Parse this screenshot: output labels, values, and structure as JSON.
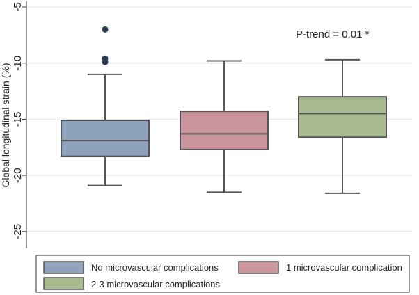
{
  "chart_data": {
    "type": "box",
    "ylabel": "Global longitudinal strain (%)",
    "ylim": [
      -26.5,
      -4.5
    ],
    "yticks": [
      -5,
      -10,
      -15,
      -20,
      -25
    ],
    "ytick_labels": [
      "-5",
      "-10",
      "-15",
      "-20",
      "-25"
    ],
    "grid": true,
    "annotation": "P-trend = 0.01 *",
    "legend_position": "bottom",
    "series": [
      {
        "name": "No microvascular complications",
        "color": "#8ea2bc",
        "whisker_high": -11.0,
        "q3": -15.1,
        "median": -16.9,
        "q1": -18.3,
        "whisker_low": -20.9,
        "outliers": [
          -7.0,
          -9.6,
          -9.9
        ]
      },
      {
        "name": "1 microvascular complication",
        "color": "#c9949b",
        "whisker_high": -9.8,
        "q3": -14.3,
        "median": -16.3,
        "q1": -17.7,
        "whisker_low": -21.5,
        "outliers": []
      },
      {
        "name": "2-3 microvascular complications",
        "color": "#a7b98f",
        "whisker_high": -9.7,
        "q3": -13.0,
        "median": -14.5,
        "q1": -16.6,
        "whisker_low": -21.6,
        "outliers": []
      }
    ]
  }
}
